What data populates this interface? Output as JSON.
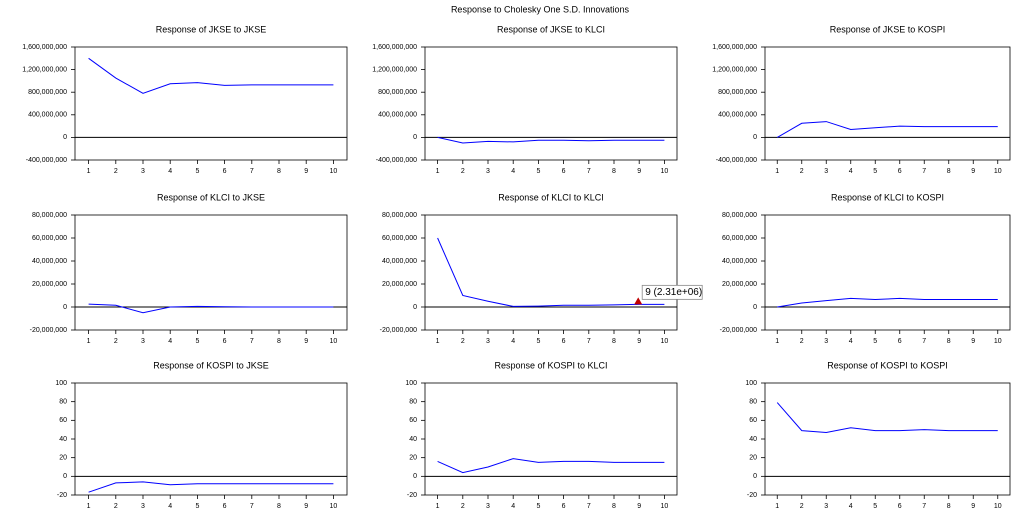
{
  "title": "Response to Cholesky One S.D. Innovations",
  "chart_data": [
    {
      "type": "line",
      "title": "Response of JKSE to JKSE",
      "categories": [
        "1",
        "2",
        "3",
        "4",
        "5",
        "6",
        "7",
        "8",
        "9",
        "10"
      ],
      "series": [
        {
          "color": "#0000ff",
          "values": [
            1400000000,
            1050000000,
            780000000,
            950000000,
            970000000,
            920000000,
            930000000,
            930000000,
            930000000,
            930000000
          ]
        }
      ],
      "ylim": [
        -400000000,
        1600000000
      ],
      "yticks": [
        {
          "value": -400000000,
          "label": "-400,000,000"
        },
        0,
        {
          "value": 400000000,
          "label": "400,000,000"
        },
        {
          "value": 800000000,
          "label": "800,000,000"
        },
        {
          "value": 1200000000,
          "label": "1,200,000,000"
        },
        {
          "value": 1600000000,
          "label": "1,600,000,000"
        }
      ]
    },
    {
      "type": "line",
      "title": "Response of JKSE to KLCI",
      "categories": [
        "1",
        "2",
        "3",
        "4",
        "5",
        "6",
        "7",
        "8",
        "9",
        "10"
      ],
      "series": [
        {
          "color": "#0000ff",
          "values": [
            0,
            -100000000,
            -70000000,
            -80000000,
            -50000000,
            -50000000,
            -60000000,
            -50000000,
            -50000000,
            -50000000
          ]
        }
      ],
      "ylim": [
        -400000000,
        1600000000
      ],
      "yticks": [
        {
          "value": -400000000,
          "label": "-400,000,000"
        },
        0,
        {
          "value": 400000000,
          "label": "400,000,000"
        },
        {
          "value": 800000000,
          "label": "800,000,000"
        },
        {
          "value": 1200000000,
          "label": "1,200,000,000"
        },
        {
          "value": 1600000000,
          "label": "1,600,000,000"
        }
      ]
    },
    {
      "type": "line",
      "title": "Response of JKSE to KOSPI",
      "categories": [
        "1",
        "2",
        "3",
        "4",
        "5",
        "6",
        "7",
        "8",
        "9",
        "10"
      ],
      "series": [
        {
          "color": "#0000ff",
          "values": [
            0,
            250000000,
            280000000,
            140000000,
            170000000,
            200000000,
            190000000,
            190000000,
            190000000,
            190000000
          ]
        }
      ],
      "ylim": [
        -400000000,
        1600000000
      ],
      "yticks": [
        {
          "value": -400000000,
          "label": "-400,000,000"
        },
        0,
        {
          "value": 400000000,
          "label": "400,000,000"
        },
        {
          "value": 800000000,
          "label": "800,000,000"
        },
        {
          "value": 1200000000,
          "label": "1,200,000,000"
        },
        {
          "value": 1600000000,
          "label": "1,600,000,000"
        }
      ]
    },
    {
      "type": "line",
      "title": "Response of KLCI to JKSE",
      "categories": [
        "1",
        "2",
        "3",
        "4",
        "5",
        "6",
        "7",
        "8",
        "9",
        "10"
      ],
      "series": [
        {
          "color": "#0000ff",
          "values": [
            2500000,
            1500000,
            -5000000,
            0,
            500000,
            200000,
            0,
            0,
            0,
            0
          ]
        }
      ],
      "ylim": [
        -20000000,
        80000000
      ],
      "yticks": [
        {
          "value": -20000000,
          "label": "-20,000,000"
        },
        0,
        {
          "value": 20000000,
          "label": "20,000,000"
        },
        {
          "value": 40000000,
          "label": "40,000,000"
        },
        {
          "value": 60000000,
          "label": "60,000,000"
        },
        {
          "value": 80000000,
          "label": "80,000,000"
        }
      ]
    },
    {
      "type": "line",
      "title": "Response of KLCI to KLCI",
      "categories": [
        "1",
        "2",
        "3",
        "4",
        "5",
        "6",
        "7",
        "8",
        "9",
        "10"
      ],
      "series": [
        {
          "color": "#0000ff",
          "values": [
            60000000,
            10000000,
            5000000,
            500000,
            800000,
            1500000,
            1500000,
            1800000,
            2310000,
            2300000
          ]
        }
      ],
      "annotation": "9 (2.31e+06)",
      "ylim": [
        -20000000,
        80000000
      ],
      "yticks": [
        {
          "value": -20000000,
          "label": "-20,000,000"
        },
        0,
        {
          "value": 20000000,
          "label": "20,000,000"
        },
        {
          "value": 40000000,
          "label": "40,000,000"
        },
        {
          "value": 60000000,
          "label": "60,000,000"
        },
        {
          "value": 80000000,
          "label": "80,000,000"
        }
      ]
    },
    {
      "type": "line",
      "title": "Response of KLCI to KOSPI",
      "categories": [
        "1",
        "2",
        "3",
        "4",
        "5",
        "6",
        "7",
        "8",
        "9",
        "10"
      ],
      "series": [
        {
          "color": "#0000ff",
          "values": [
            0,
            3500000,
            5500000,
            7500000,
            6500000,
            7500000,
            6500000,
            6500000,
            6500000,
            6500000
          ]
        }
      ],
      "ylim": [
        -20000000,
        80000000
      ],
      "yticks": [
        {
          "value": -20000000,
          "label": "-20,000,000"
        },
        0,
        {
          "value": 20000000,
          "label": "20,000,000"
        },
        {
          "value": 40000000,
          "label": "40,000,000"
        },
        {
          "value": 60000000,
          "label": "60,000,000"
        },
        {
          "value": 80000000,
          "label": "80,000,000"
        }
      ]
    },
    {
      "type": "line",
      "title": "Response of KOSPI to JKSE",
      "categories": [
        "1",
        "2",
        "3",
        "4",
        "5",
        "6",
        "7",
        "8",
        "9",
        "10"
      ],
      "series": [
        {
          "color": "#0000ff",
          "values": [
            -17,
            -7,
            -6,
            -9,
            -8,
            -8,
            -8,
            -8,
            -8,
            -8
          ]
        }
      ],
      "ylim": [
        -20,
        100
      ],
      "yticks": [
        -20,
        0,
        20,
        40,
        60,
        80,
        100
      ]
    },
    {
      "type": "line",
      "title": "Response of KOSPI to KLCI",
      "categories": [
        "1",
        "2",
        "3",
        "4",
        "5",
        "6",
        "7",
        "8",
        "9",
        "10"
      ],
      "series": [
        {
          "color": "#0000ff",
          "values": [
            16,
            4,
            10,
            19,
            15,
            16,
            16,
            15,
            15,
            15
          ]
        }
      ],
      "ylim": [
        -20,
        100
      ],
      "yticks": [
        -20,
        0,
        20,
        40,
        60,
        80,
        100
      ]
    },
    {
      "type": "line",
      "title": "Response of KOSPI to KOSPI",
      "categories": [
        "1",
        "2",
        "3",
        "4",
        "5",
        "6",
        "7",
        "8",
        "9",
        "10"
      ],
      "series": [
        {
          "color": "#0000ff",
          "values": [
            79,
            49,
            47,
            52,
            49,
            49,
            50,
            49,
            49,
            49
          ]
        }
      ],
      "ylim": [
        -20,
        100
      ],
      "yticks": [
        -20,
        0,
        20,
        40,
        60,
        80,
        100
      ]
    }
  ]
}
